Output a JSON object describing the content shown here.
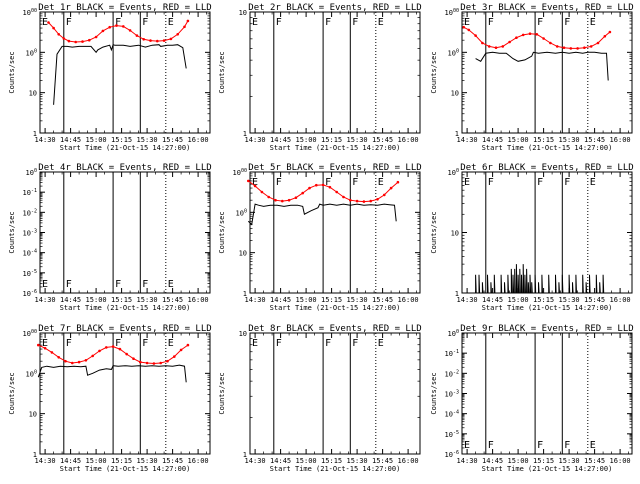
{
  "chart_data": [
    {
      "type": "line",
      "title": "Det 1r BLACK = Events, RED = LLD",
      "xlabel": "Start Time (21-Oct-15 14:27:00)",
      "ylabel": "Counts/sec",
      "y_scale": "log",
      "ylim": [
        1,
        1000
      ],
      "xlim": [
        870,
        970
      ],
      "x_tick_labels": [
        "14:30",
        "14:45",
        "15:00",
        "15:15",
        "15:30",
        "15:45",
        "16:00"
      ],
      "y_tick_labels": [
        "1",
        "10",
        "100",
        "1000"
      ],
      "markers": [
        {
          "label": "E",
          "x": 870,
          "style": "solid"
        },
        {
          "label": "F",
          "x": 884,
          "style": "solid"
        },
        {
          "label": "F",
          "x": 913,
          "style": "solid"
        },
        {
          "label": "F",
          "x": 929,
          "style": "solid"
        },
        {
          "label": "E",
          "x": 944,
          "style": "dotted"
        }
      ],
      "series": [
        {
          "name": "Events",
          "color": "#000000",
          "x": [
            878,
            880,
            883,
            886,
            889,
            893,
            897,
            900,
            903,
            904,
            907,
            911,
            912,
            913,
            914,
            919,
            923,
            928,
            932,
            936,
            940,
            941,
            945,
            948,
            951,
            954,
            956
          ],
          "y": [
            5,
            90,
            140,
            140,
            135,
            140,
            140,
            140,
            100,
            115,
            135,
            150,
            115,
            155,
            150,
            150,
            140,
            150,
            135,
            150,
            155,
            140,
            150,
            150,
            155,
            130,
            40
          ]
        },
        {
          "name": "LLD",
          "color": "#ff0000",
          "x": [
            875,
            878,
            881,
            884,
            887,
            891,
            895,
            899,
            903,
            907,
            911,
            915,
            919,
            923,
            927,
            931,
            935,
            939,
            943,
            947,
            951,
            955,
            957
          ],
          "y": [
            550,
            400,
            280,
            220,
            190,
            180,
            185,
            200,
            240,
            340,
            420,
            460,
            440,
            350,
            260,
            210,
            195,
            190,
            195,
            215,
            280,
            430,
            600
          ]
        }
      ]
    },
    {
      "type": "line",
      "title": "Det 2r BLACK = Events, RED = LLD",
      "xlabel": "Start Time (21-Oct-15 14:27:00)",
      "ylabel": "Counts/sec",
      "y_scale": "log",
      "ylim": [
        1,
        10
      ],
      "xlim": [
        870,
        970
      ],
      "x_tick_labels": [
        "14:30",
        "14:45",
        "15:00",
        "15:15",
        "15:30",
        "15:45",
        "16:00"
      ],
      "y_tick_labels": [
        "1",
        "10"
      ],
      "markers": [
        {
          "label": "E",
          "x": 870,
          "style": "solid"
        },
        {
          "label": "F",
          "x": 884,
          "style": "solid"
        },
        {
          "label": "F",
          "x": 913,
          "style": "solid"
        },
        {
          "label": "F",
          "x": 929,
          "style": "solid"
        },
        {
          "label": "E",
          "x": 944,
          "style": "dotted"
        }
      ],
      "series": []
    },
    {
      "type": "line",
      "title": "Det 3r BLACK = Events, RED = LLD",
      "xlabel": "Start Time (21-Oct-15 14:27:00)",
      "ylabel": "Counts/sec",
      "y_scale": "log",
      "ylim": [
        1,
        1000
      ],
      "xlim": [
        870,
        970
      ],
      "x_tick_labels": [
        "14:30",
        "14:45",
        "15:00",
        "15:15",
        "15:30",
        "15:45",
        "16:00"
      ],
      "y_tick_labels": [
        "1",
        "10",
        "100",
        "1000"
      ],
      "markers": [
        {
          "label": "E",
          "x": 870,
          "style": "solid"
        },
        {
          "label": "F",
          "x": 884,
          "style": "solid"
        },
        {
          "label": "F",
          "x": 913,
          "style": "solid"
        },
        {
          "label": "F",
          "x": 929,
          "style": "solid"
        },
        {
          "label": "E",
          "x": 944,
          "style": "dotted"
        }
      ],
      "series": [
        {
          "name": "Events",
          "color": "#000000",
          "x": [
            878,
            881,
            884,
            888,
            892,
            896,
            900,
            903,
            907,
            911,
            912,
            915,
            920,
            925,
            929,
            933,
            937,
            941,
            944,
            948,
            952,
            955,
            956
          ],
          "y": [
            70,
            60,
            95,
            100,
            95,
            95,
            70,
            60,
            65,
            80,
            100,
            95,
            100,
            95,
            100,
            95,
            100,
            95,
            100,
            100,
            95,
            95,
            20
          ]
        },
        {
          "name": "LLD",
          "color": "#ff0000",
          "x": [
            871,
            874,
            878,
            882,
            886,
            890,
            894,
            898,
            902,
            906,
            910,
            914,
            918,
            922,
            926,
            930,
            934,
            938,
            942,
            946,
            950,
            954,
            957
          ],
          "y": [
            420,
            360,
            260,
            170,
            140,
            130,
            140,
            180,
            230,
            270,
            290,
            280,
            220,
            170,
            140,
            130,
            125,
            125,
            130,
            140,
            170,
            250,
            320
          ]
        }
      ]
    },
    {
      "type": "line",
      "title": "Det 4r BLACK = Events, RED = LLD",
      "xlabel": "Start Time (21-Oct-15 14:27:00)",
      "ylabel": "Counts/sec",
      "y_scale": "log",
      "ylim": [
        1e-06,
        1e-08
      ],
      "xlim": [
        870,
        970
      ],
      "x_tick_labels": [
        "14:30",
        "14:45",
        "15:00",
        "15:15",
        "15:30",
        "15:45",
        "16:00"
      ],
      "y_tick_labels": [
        "10-6",
        "10-5",
        "10-4",
        "10-3",
        "10-2",
        "10-1",
        "100"
      ],
      "markers": [
        {
          "label": "E",
          "x": 870,
          "style": "solid"
        },
        {
          "label": "F",
          "x": 884,
          "style": "solid"
        },
        {
          "label": "F",
          "x": 913,
          "style": "solid"
        },
        {
          "label": "F",
          "x": 929,
          "style": "solid"
        },
        {
          "label": "E",
          "x": 944,
          "style": "dotted"
        }
      ],
      "series": []
    },
    {
      "type": "line",
      "title": "Det 5r BLACK = Events, RED = LLD",
      "xlabel": "Start Time (21-Oct-15 14:27:00)",
      "ylabel": "Counts/sec",
      "y_scale": "log",
      "ylim": [
        1,
        1000
      ],
      "xlim": [
        870,
        970
      ],
      "x_tick_labels": [
        "14:30",
        "14:45",
        "15:00",
        "15:15",
        "15:30",
        "15:45",
        "16:00"
      ],
      "y_tick_labels": [
        "1",
        "10",
        "100",
        "1000"
      ],
      "markers": [
        {
          "label": "E",
          "x": 870,
          "style": "solid"
        },
        {
          "label": "F",
          "x": 884,
          "style": "solid"
        },
        {
          "label": "F",
          "x": 913,
          "style": "solid"
        },
        {
          "label": "F",
          "x": 929,
          "style": "solid"
        },
        {
          "label": "E",
          "x": 944,
          "style": "dotted"
        }
      ],
      "series": [
        {
          "name": "Events",
          "color": "#000000",
          "x": [
            869,
            871,
            873,
            875,
            878,
            882,
            886,
            890,
            894,
            898,
            901,
            902,
            906,
            910,
            911,
            913,
            917,
            921,
            925,
            929,
            933,
            937,
            941,
            945,
            949,
            952,
            955,
            956
          ],
          "y": [
            60,
            50,
            160,
            150,
            140,
            150,
            150,
            140,
            150,
            150,
            140,
            90,
            110,
            130,
            160,
            150,
            160,
            150,
            160,
            150,
            160,
            150,
            155,
            150,
            160,
            155,
            150,
            60
          ]
        },
        {
          "name": "LLD",
          "color": "#ff0000",
          "x": [
            869,
            873,
            877,
            881,
            885,
            889,
            893,
            897,
            901,
            905,
            909,
            913,
            917,
            921,
            925,
            929,
            933,
            937,
            941,
            945,
            949,
            953,
            957
          ],
          "y": [
            600,
            450,
            320,
            240,
            200,
            190,
            200,
            230,
            300,
            400,
            470,
            480,
            420,
            320,
            240,
            200,
            190,
            185,
            190,
            210,
            270,
            400,
            560
          ]
        }
      ]
    },
    {
      "type": "line",
      "title": "Det 6r BLACK = Events, RED = LLD",
      "xlabel": "Start Time (21-Oct-15 14:27:00)",
      "ylabel": "Counts/sec",
      "y_scale": "log",
      "ylim": [
        1,
        100
      ],
      "xlim": [
        870,
        970
      ],
      "x_tick_labels": [
        "14:30",
        "14:45",
        "15:00",
        "15:15",
        "15:30",
        "15:45",
        "16:00"
      ],
      "y_tick_labels": [
        "1",
        "10",
        "100"
      ],
      "markers": [
        {
          "label": "E",
          "x": 870,
          "style": "solid"
        },
        {
          "label": "F",
          "x": 884,
          "style": "solid"
        },
        {
          "label": "F",
          "x": 913,
          "style": "solid"
        },
        {
          "label": "F",
          "x": 929,
          "style": "solid"
        },
        {
          "label": "E",
          "x": 944,
          "style": "dotted"
        }
      ],
      "series": [
        {
          "name": "Events",
          "color": "#000000",
          "spiky": true,
          "x": [
            878,
            880,
            882,
            885,
            887,
            889,
            891,
            893,
            895,
            897,
            899,
            900,
            901,
            902,
            903,
            904,
            905,
            906,
            907,
            908,
            909,
            910,
            911,
            913,
            915,
            917,
            919,
            921,
            923,
            925,
            927,
            929,
            931,
            933,
            935,
            937,
            939,
            941,
            943,
            945,
            947,
            949,
            951,
            953,
            955
          ],
          "y": [
            2,
            2,
            1.5,
            2,
            1.5,
            2,
            1,
            2,
            1.5,
            2,
            2.5,
            2,
            2.5,
            3,
            2,
            2.5,
            2,
            3,
            2,
            2.5,
            1.5,
            2,
            1.5,
            2,
            1.5,
            2,
            1,
            2,
            1,
            2,
            1.5,
            2,
            1,
            2,
            1.5,
            2,
            1,
            2,
            1.5,
            2,
            1,
            2,
            1.5,
            2,
            1
          ]
        }
      ]
    },
    {
      "type": "line",
      "title": "Det 7r BLACK = Events, RED = LLD",
      "xlabel": "Start Time (21-Oct-15 14:27:00)",
      "ylabel": "Counts/sec",
      "y_scale": "log",
      "ylim": [
        1,
        1000
      ],
      "xlim": [
        870,
        970
      ],
      "x_tick_labels": [
        "14:30",
        "14:45",
        "15:00",
        "15:15",
        "15:30",
        "15:45",
        "16:00"
      ],
      "y_tick_labels": [
        "1",
        "10",
        "100",
        "1000"
      ],
      "markers": [
        {
          "label": "E",
          "x": 870,
          "style": "solid"
        },
        {
          "label": "F",
          "x": 884,
          "style": "solid"
        },
        {
          "label": "F",
          "x": 913,
          "style": "solid"
        },
        {
          "label": "F",
          "x": 929,
          "style": "solid"
        },
        {
          "label": "E",
          "x": 944,
          "style": "dotted"
        }
      ],
      "series": [
        {
          "name": "Events",
          "color": "#000000",
          "x": [
            869,
            871,
            874,
            878,
            882,
            886,
            890,
            894,
            897,
            898,
            901,
            905,
            909,
            912,
            913,
            916,
            920,
            924,
            928,
            932,
            936,
            940,
            944,
            948,
            952,
            955,
            956
          ],
          "y": [
            80,
            140,
            150,
            140,
            150,
            145,
            150,
            145,
            150,
            90,
            100,
            120,
            130,
            125,
            155,
            150,
            155,
            150,
            155,
            150,
            155,
            150,
            155,
            150,
            160,
            150,
            60
          ]
        },
        {
          "name": "LLD",
          "color": "#ff0000",
          "x": [
            869,
            873,
            877,
            881,
            885,
            889,
            893,
            897,
            901,
            905,
            909,
            913,
            917,
            921,
            925,
            929,
            933,
            937,
            941,
            945,
            949,
            953,
            957
          ],
          "y": [
            500,
            420,
            330,
            250,
            200,
            180,
            190,
            210,
            270,
            360,
            440,
            460,
            400,
            300,
            230,
            190,
            180,
            175,
            180,
            200,
            260,
            380,
            500
          ]
        }
      ]
    },
    {
      "type": "line",
      "title": "Det 8r BLACK = Events, RED = LLD",
      "xlabel": "Start Time (21-Oct-15 14:27:00)",
      "ylabel": "Counts/sec",
      "y_scale": "log",
      "ylim": [
        1,
        10
      ],
      "xlim": [
        870,
        970
      ],
      "x_tick_labels": [
        "14:30",
        "14:45",
        "15:00",
        "15:15",
        "15:30",
        "15:45",
        "16:00"
      ],
      "y_tick_labels": [
        "1",
        "10"
      ],
      "markers": [
        {
          "label": "E",
          "x": 870,
          "style": "solid"
        },
        {
          "label": "F",
          "x": 884,
          "style": "solid"
        },
        {
          "label": "F",
          "x": 913,
          "style": "solid"
        },
        {
          "label": "F",
          "x": 929,
          "style": "solid"
        },
        {
          "label": "E",
          "x": 944,
          "style": "dotted"
        }
      ],
      "series": []
    },
    {
      "type": "line",
      "title": "Det 9r BLACK = Events, RED = LLD",
      "xlabel": "Start Time (21-Oct-15 14:27:00)",
      "ylabel": "Counts/sec",
      "y_scale": "log",
      "ylim": [
        1e-06,
        1e-08
      ],
      "xlim": [
        870,
        970
      ],
      "x_tick_labels": [
        "14:30",
        "14:45",
        "15:00",
        "15:15",
        "15:30",
        "15:45",
        "16:00"
      ],
      "y_tick_labels": [
        "10-6",
        "10-5",
        "10-4",
        "10-3",
        "10-2",
        "10-1",
        "100"
      ],
      "markers": [
        {
          "label": "E",
          "x": 870,
          "style": "solid"
        },
        {
          "label": "F",
          "x": 884,
          "style": "solid"
        },
        {
          "label": "F",
          "x": 913,
          "style": "solid"
        },
        {
          "label": "F",
          "x": 929,
          "style": "solid"
        },
        {
          "label": "E",
          "x": 944,
          "style": "dotted"
        }
      ],
      "series": []
    }
  ]
}
